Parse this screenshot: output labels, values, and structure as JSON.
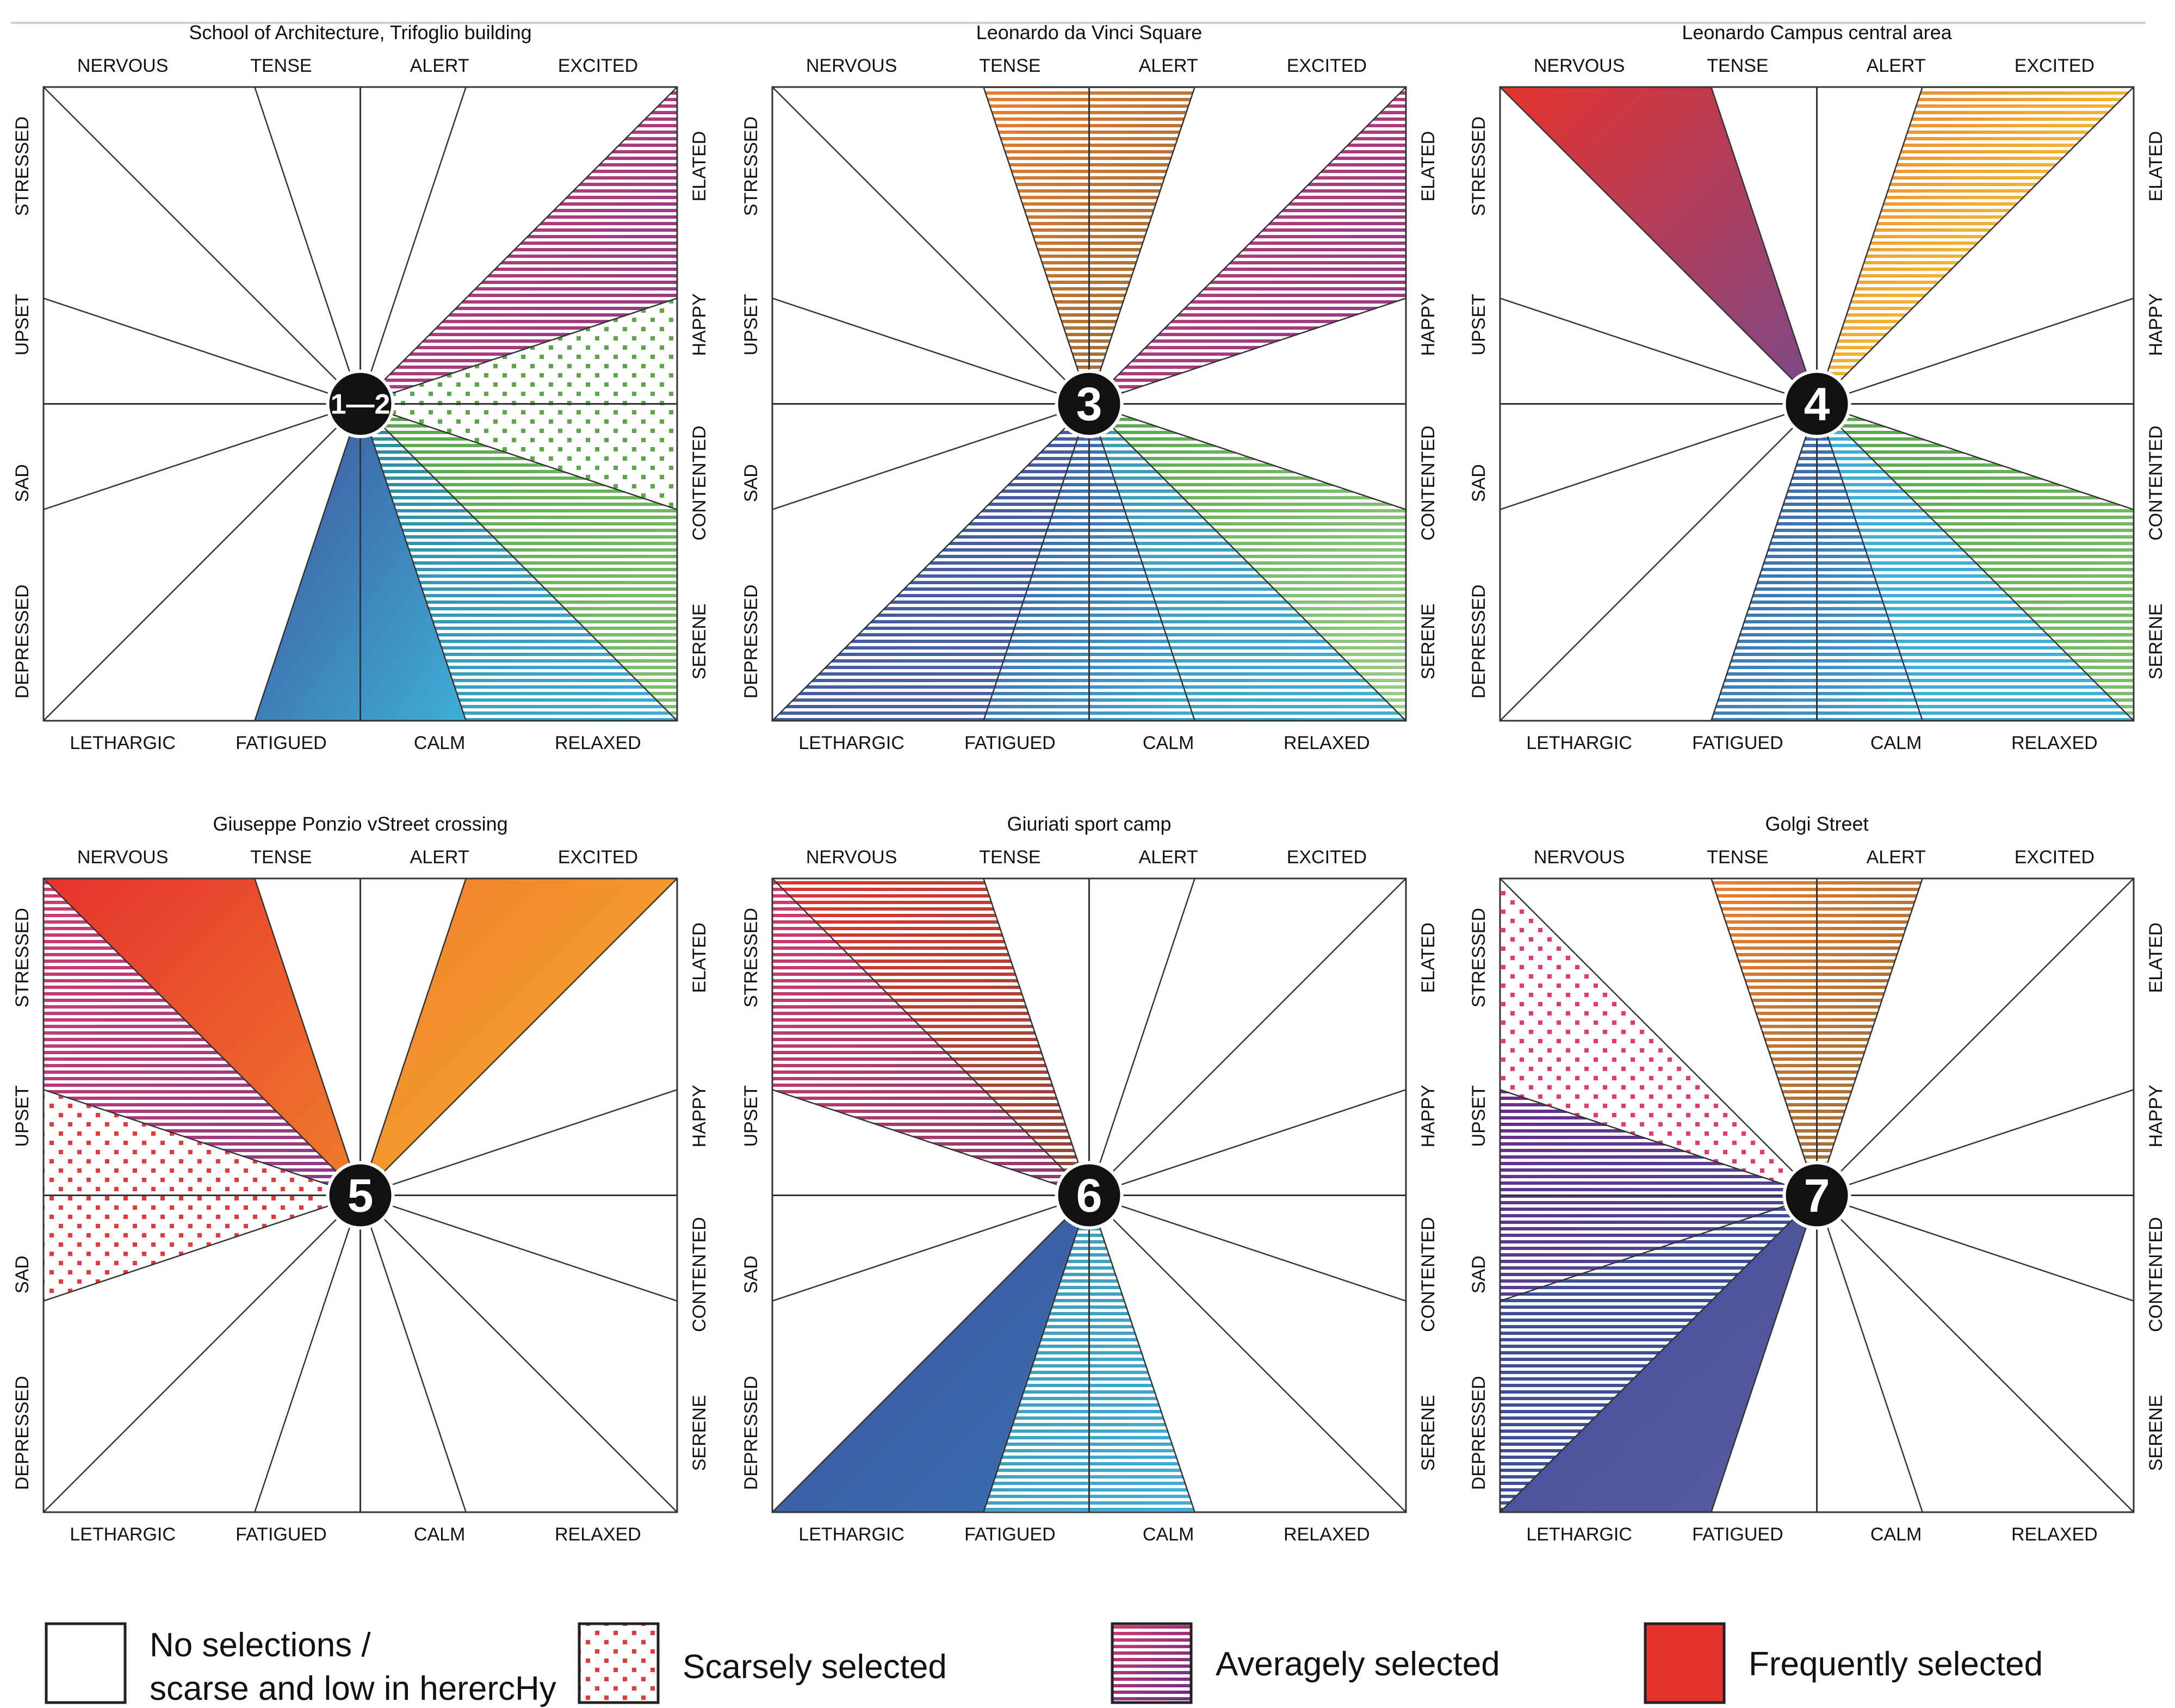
{
  "emotions_top": [
    "NERVOUS",
    "TENSE",
    "ALERT",
    "EXCITED"
  ],
  "emotions_right": [
    "ELATED",
    "HAPPY",
    "CONTENTED",
    "SERENE"
  ],
  "emotions_bottom": [
    "LETHARGIC",
    "FATIGUED",
    "CALM",
    "RELAXED"
  ],
  "emotions_left": [
    "STRESSED",
    "UPSET",
    "SAD",
    "DEPRESSED"
  ],
  "levels": {
    "scarce": "Scarsely selected",
    "average": "Averagely selected",
    "frequent": "Frequently selected"
  },
  "colors": {
    "red": "#e5322d",
    "orange": "#ef7d2c",
    "yellow": "#f6e83a",
    "green": "#57a64b",
    "teal": "#3eaed9",
    "blue": "#3f4f9a",
    "purple": "#6c2b8a",
    "magenta": "#d23a6e",
    "dot_red": "#e53a3a",
    "dot_green": "#5aa84a"
  },
  "legend": {
    "none_line1": "No selections /",
    "none_line2": "scarse and low in herercHy",
    "scarce": "Scarsely selected",
    "average": "Averagely selected",
    "frequent": "Frequently selected"
  },
  "panels": [
    {
      "title": "School of Architecture, Trifoglio building",
      "badge": "1—2",
      "sectors": [
        {
          "index": 3,
          "level": "average",
          "colors": [
            "#d23a6e",
            "#8a3a8a"
          ]
        },
        {
          "index": 4,
          "level": "scarce",
          "colors": [
            "#5aa84a",
            "#5aa84a"
          ]
        },
        {
          "index": 5,
          "level": "average",
          "colors": [
            "#57a64b",
            "#7fbf6e"
          ]
        },
        {
          "index": 6,
          "level": "average",
          "colors": [
            "#2a8a9a",
            "#3eaed9"
          ]
        },
        {
          "index": 7,
          "level": "frequent",
          "colors": [
            "#3f4f9a",
            "#3eaed9"
          ]
        }
      ]
    },
    {
      "title": "Leonardo da Vinci Square",
      "badge": "3",
      "sectors": [
        {
          "index": 1,
          "level": "average",
          "colors": [
            "#ef7d2c",
            "#8a6a3a"
          ]
        },
        {
          "index": 3,
          "level": "average",
          "colors": [
            "#d23a6e",
            "#8a3a8a"
          ]
        },
        {
          "index": 5,
          "level": "average",
          "colors": [
            "#57a64b",
            "#9bcf8a"
          ]
        },
        {
          "index": 6,
          "level": "average",
          "colors": [
            "#3e9ab0",
            "#3eaed9"
          ]
        },
        {
          "index": 7,
          "level": "average",
          "colors": [
            "#3f4f9a",
            "#3eaed9"
          ]
        },
        {
          "index": 8,
          "level": "average",
          "colors": [
            "#3f4f9a",
            "#4a6aaa"
          ]
        }
      ]
    },
    {
      "title": "Leonardo Campus central area",
      "badge": "4",
      "sectors": [
        {
          "index": 0,
          "level": "frequent",
          "colors": [
            "#e5322d",
            "#7a4a8a"
          ]
        },
        {
          "index": 2,
          "level": "average",
          "colors": [
            "#ef7d2c",
            "#f6e83a"
          ]
        },
        {
          "index": 5,
          "level": "average",
          "colors": [
            "#57a64b",
            "#7fbf6e"
          ]
        },
        {
          "index": 6,
          "level": "average",
          "colors": [
            "#3eaed9",
            "#3eaed9"
          ]
        },
        {
          "index": 7,
          "level": "average",
          "colors": [
            "#3f4f9a",
            "#3eaed9"
          ]
        }
      ]
    },
    {
      "title": "Giuseppe Ponzio vStreet crossing",
      "badge": "5",
      "sectors": [
        {
          "index": 0,
          "level": "frequent",
          "colors": [
            "#e5322d",
            "#ef7d2c"
          ]
        },
        {
          "index": 10,
          "level": "scarce",
          "colors": [
            "#e53a3a",
            "#e53a3a"
          ]
        },
        {
          "index": 11,
          "level": "average",
          "colors": [
            "#d23a6e",
            "#8a3a8a"
          ]
        },
        {
          "index": 2,
          "level": "frequent",
          "colors": [
            "#ef7d2c",
            "#f7b32e"
          ]
        }
      ]
    },
    {
      "title": "Giuriati sport camp",
      "badge": "6",
      "sectors": [
        {
          "index": 0,
          "level": "average",
          "colors": [
            "#e5322d",
            "#8a4a3a"
          ]
        },
        {
          "index": 11,
          "level": "average",
          "colors": [
            "#d23a6e",
            "#8a3a6a"
          ]
        },
        {
          "index": 8,
          "level": "frequent",
          "colors": [
            "#3f4f9a",
            "#3a70b0"
          ]
        },
        {
          "index": 7,
          "level": "average",
          "colors": [
            "#3e9ab0",
            "#3eaed9"
          ]
        }
      ]
    },
    {
      "title": "Golgi Street",
      "badge": "7",
      "sectors": [
        {
          "index": 1,
          "level": "average",
          "colors": [
            "#ef7d2c",
            "#8a6a3a"
          ]
        },
        {
          "index": 11,
          "level": "scarce",
          "colors": [
            "#e53a6a",
            "#7a3a8a"
          ]
        },
        {
          "index": 10,
          "level": "average",
          "colors": [
            "#6c2b8a",
            "#3f4f9a"
          ]
        },
        {
          "index": 9,
          "level": "average",
          "colors": [
            "#3f4f9a",
            "#3f4f9a"
          ]
        },
        {
          "index": 8,
          "level": "frequent",
          "colors": [
            "#3f4f9a",
            "#5a5aa0"
          ]
        }
      ]
    }
  ]
}
